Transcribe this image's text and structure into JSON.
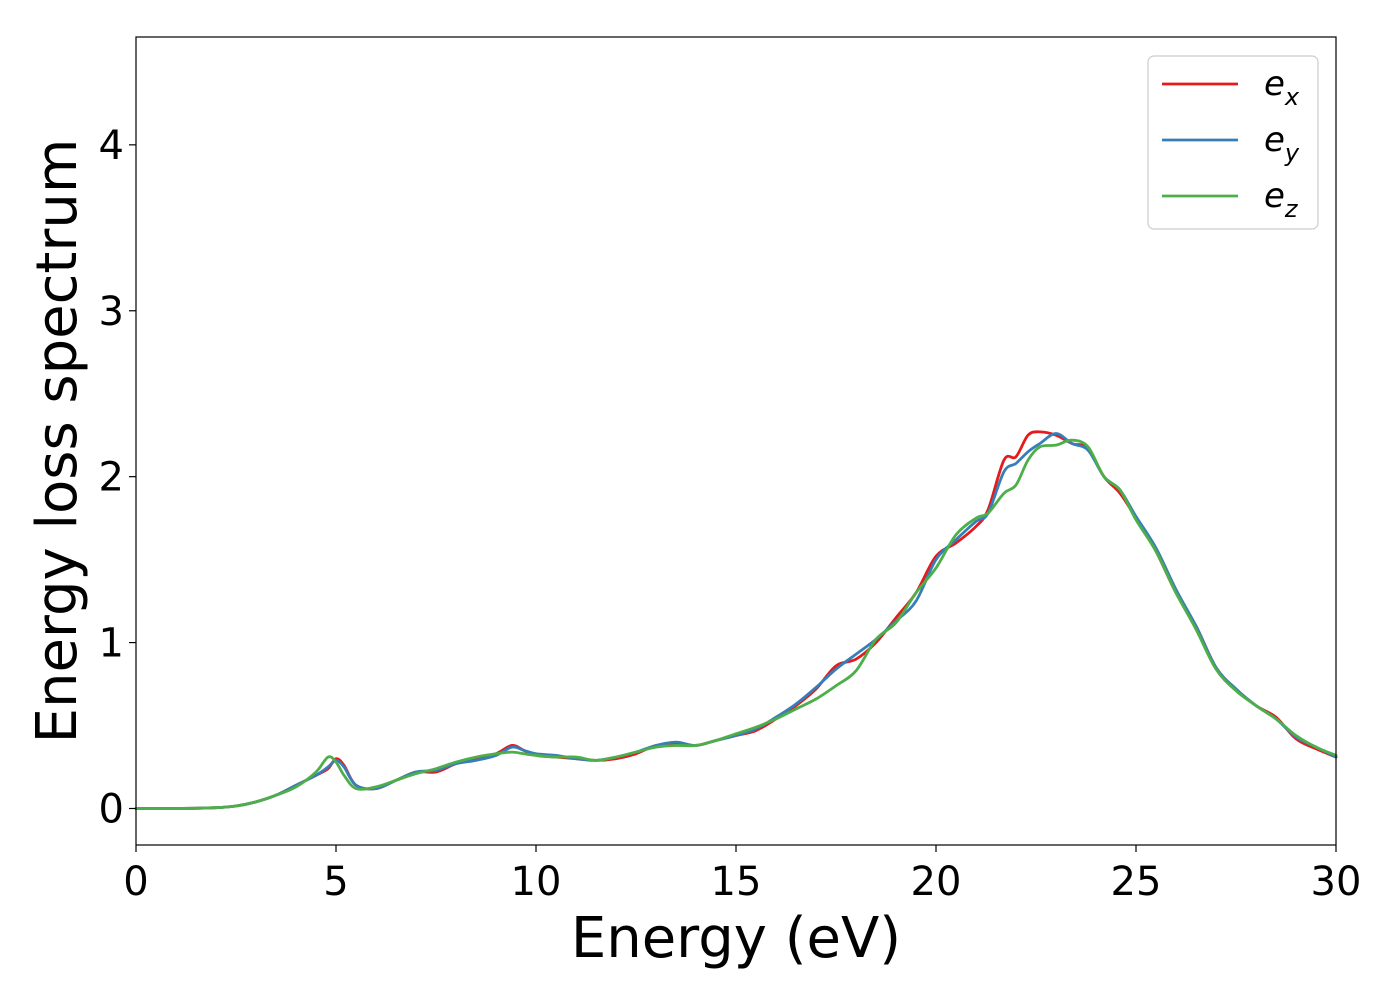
{
  "chart_data": {
    "type": "line",
    "xlabel": "Energy (eV)",
    "ylabel": "Energy loss spectrum",
    "xlim": [
      0,
      30
    ],
    "ylim": [
      -0.22,
      4.65
    ],
    "xticks": [
      0,
      5,
      10,
      15,
      20,
      25,
      30
    ],
    "yticks": [
      0,
      1,
      2,
      3,
      4
    ],
    "grid": false,
    "legend_position": "top-right",
    "series": [
      {
        "name": "e_x",
        "legend_base": "e",
        "legend_sub": "x",
        "color": "#e41a1c",
        "x": [
          0,
          1,
          2,
          2.5,
          3,
          3.5,
          4,
          4.5,
          4.8,
          5,
          5.2,
          5.5,
          6,
          6.5,
          7,
          7.5,
          8,
          8.5,
          9,
          9.4,
          9.7,
          10,
          10.5,
          11,
          11.5,
          12,
          12.5,
          13,
          13.5,
          14,
          14.5,
          15,
          15.5,
          16,
          16.5,
          17,
          17.5,
          18,
          18.5,
          19,
          19.5,
          20,
          20.5,
          21,
          21.3,
          21.7,
          22,
          22.3,
          22.6,
          23,
          23.4,
          23.8,
          24.2,
          24.6,
          25,
          25.5,
          26,
          26.5,
          27,
          27.5,
          28,
          28.5,
          29,
          29.5,
          30
        ],
        "y": [
          0,
          0,
          0.005,
          0.015,
          0.04,
          0.08,
          0.14,
          0.2,
          0.24,
          0.3,
          0.26,
          0.14,
          0.12,
          0.17,
          0.22,
          0.22,
          0.27,
          0.3,
          0.33,
          0.38,
          0.35,
          0.32,
          0.31,
          0.3,
          0.29,
          0.3,
          0.33,
          0.38,
          0.39,
          0.38,
          0.41,
          0.44,
          0.47,
          0.54,
          0.62,
          0.72,
          0.86,
          0.9,
          1.0,
          1.15,
          1.3,
          1.52,
          1.6,
          1.7,
          1.8,
          2.1,
          2.12,
          2.25,
          2.27,
          2.25,
          2.2,
          2.17,
          2.0,
          1.9,
          1.75,
          1.55,
          1.3,
          1.1,
          0.85,
          0.72,
          0.62,
          0.55,
          0.42,
          0.36,
          0.31
        ]
      },
      {
        "name": "e_y",
        "legend_base": "e",
        "legend_sub": "y",
        "color": "#377eb8",
        "x": [
          0,
          1,
          2,
          2.5,
          3,
          3.5,
          4,
          4.5,
          4.8,
          5,
          5.2,
          5.5,
          6,
          6.5,
          7,
          7.5,
          8,
          8.5,
          9,
          9.4,
          9.7,
          10,
          10.5,
          11,
          11.5,
          12,
          12.5,
          13,
          13.5,
          14,
          14.5,
          15,
          15.5,
          16,
          16.5,
          17,
          17.5,
          18,
          18.5,
          19,
          19.5,
          20,
          20.5,
          21,
          21.3,
          21.7,
          22,
          22.3,
          22.6,
          23,
          23.4,
          23.8,
          24.2,
          24.6,
          25,
          25.5,
          26,
          26.5,
          27,
          27.5,
          28,
          28.5,
          29,
          29.5,
          30
        ],
        "y": [
          0,
          0,
          0.005,
          0.015,
          0.04,
          0.08,
          0.14,
          0.2,
          0.25,
          0.29,
          0.25,
          0.14,
          0.12,
          0.17,
          0.22,
          0.23,
          0.27,
          0.29,
          0.32,
          0.37,
          0.35,
          0.33,
          0.32,
          0.3,
          0.29,
          0.31,
          0.34,
          0.38,
          0.4,
          0.38,
          0.41,
          0.44,
          0.48,
          0.55,
          0.63,
          0.73,
          0.84,
          0.93,
          1.02,
          1.13,
          1.25,
          1.5,
          1.62,
          1.73,
          1.78,
          2.03,
          2.08,
          2.15,
          2.2,
          2.26,
          2.2,
          2.16,
          2.0,
          1.92,
          1.76,
          1.57,
          1.32,
          1.1,
          0.85,
          0.72,
          0.62,
          0.54,
          0.43,
          0.37,
          0.31
        ]
      },
      {
        "name": "e_z",
        "legend_base": "e",
        "legend_sub": "z",
        "color": "#4daf4a",
        "x": [
          0,
          1,
          2,
          2.5,
          3,
          3.5,
          4,
          4.5,
          4.8,
          5,
          5.2,
          5.5,
          6,
          6.5,
          7,
          7.5,
          8,
          8.5,
          9,
          9.4,
          9.7,
          10,
          10.5,
          11,
          11.5,
          12,
          12.5,
          13,
          13.5,
          14,
          14.5,
          15,
          15.5,
          16,
          16.5,
          17,
          17.5,
          18,
          18.5,
          19,
          19.5,
          20,
          20.5,
          21,
          21.3,
          21.7,
          22,
          22.3,
          22.6,
          23,
          23.4,
          23.8,
          24.2,
          24.6,
          25,
          25.5,
          26,
          26.5,
          27,
          27.5,
          28,
          28.5,
          29,
          29.5,
          30
        ],
        "y": [
          0,
          0,
          0.005,
          0.015,
          0.04,
          0.08,
          0.13,
          0.22,
          0.31,
          0.28,
          0.2,
          0.12,
          0.13,
          0.17,
          0.21,
          0.24,
          0.28,
          0.31,
          0.33,
          0.34,
          0.33,
          0.32,
          0.31,
          0.31,
          0.29,
          0.31,
          0.34,
          0.37,
          0.38,
          0.38,
          0.41,
          0.45,
          0.49,
          0.54,
          0.6,
          0.66,
          0.74,
          0.83,
          1.02,
          1.12,
          1.3,
          1.45,
          1.65,
          1.75,
          1.78,
          1.9,
          1.95,
          2.1,
          2.18,
          2.19,
          2.22,
          2.18,
          2.0,
          1.92,
          1.74,
          1.55,
          1.3,
          1.08,
          0.84,
          0.71,
          0.62,
          0.54,
          0.44,
          0.37,
          0.32
        ]
      }
    ]
  }
}
